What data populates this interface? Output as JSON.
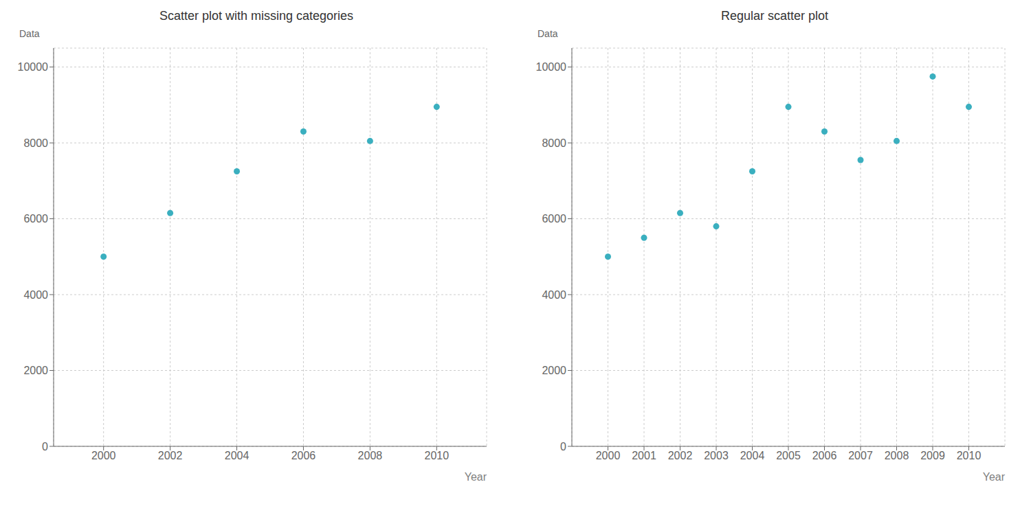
{
  "chart_data": [
    {
      "type": "scatter",
      "title": "Scatter plot with missing categories",
      "x": [
        2000,
        2002,
        2004,
        2006,
        2008,
        2010
      ],
      "values": [
        5000,
        6150,
        7250,
        8300,
        8050,
        8950
      ],
      "xlim": [
        1998.5,
        2011.5
      ],
      "xticks": [
        2000,
        2002,
        2004,
        2006,
        2008,
        2010
      ],
      "ylim": [
        0,
        10500
      ],
      "yticks": [
        0,
        2000,
        4000,
        6000,
        8000,
        10000
      ],
      "xlabel": "Year",
      "ylabel": "Data",
      "color": "#3aafbf",
      "grid": true
    },
    {
      "type": "scatter",
      "title": "Regular scatter plot",
      "x": [
        2000,
        2001,
        2002,
        2003,
        2004,
        2005,
        2006,
        2007,
        2008,
        2009,
        2010
      ],
      "values": [
        5000,
        5500,
        6150,
        5800,
        7250,
        8950,
        8300,
        7550,
        8050,
        9750,
        8950
      ],
      "xlim": [
        1999.0,
        2011.0
      ],
      "xticks": [
        2000,
        2001,
        2002,
        2003,
        2004,
        2005,
        2006,
        2007,
        2008,
        2009,
        2010
      ],
      "ylim": [
        0,
        10500
      ],
      "yticks": [
        0,
        2000,
        4000,
        6000,
        8000,
        10000
      ],
      "xlabel": "Year",
      "ylabel": "Data",
      "color": "#3aafbf",
      "grid": true
    }
  ]
}
